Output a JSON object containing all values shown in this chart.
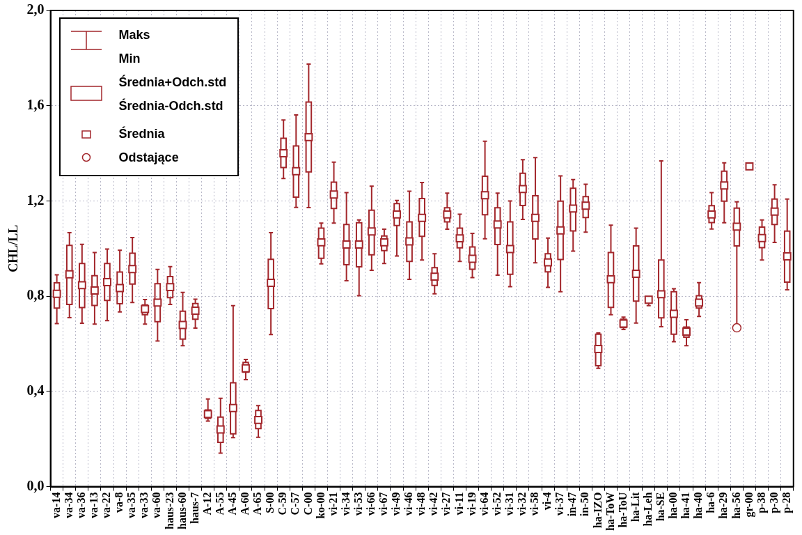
{
  "chart_data": {
    "type": "box",
    "ylabel": "CHL/LL",
    "color": "#a3272c",
    "marker": "square",
    "grid": true,
    "ylim": [
      0,
      2
    ],
    "yticks": [
      {
        "value": 0,
        "label": "0,0"
      },
      {
        "value": 0.4,
        "label": "0,4"
      },
      {
        "value": 0.8,
        "label": "0,8"
      },
      {
        "value": 1.2,
        "label": "1,2"
      },
      {
        "value": 1.6,
        "label": "1,6"
      },
      {
        "value": 2,
        "label": "2,0"
      }
    ],
    "annotations": [
      "Maks",
      "Min",
      "Średnia+Odch.std",
      "Średnia-Odch.std",
      "Średnia",
      "Odstające"
    ],
    "categories": [
      "va-14",
      "va-34",
      "va-36",
      "va-13",
      "va-22",
      "va-8",
      "va-35",
      "va-33",
      "va-60",
      "haus-23",
      "haus-60",
      "haus-7",
      "A-12",
      "A-55",
      "A-45",
      "A-60",
      "A-65",
      "S-00",
      "C-59",
      "C-57",
      "C-00",
      "ko-00",
      "vi-21",
      "vi-34",
      "vi-53",
      "vi-66",
      "vi-67",
      "vi-49",
      "vi-46",
      "vi-48",
      "vi-42",
      "vi-27",
      "vi-11",
      "vi-19",
      "vi-64",
      "vi-52",
      "vi-31",
      "vi-32",
      "vi-58",
      "vi-4",
      "vi-37",
      "in-47",
      "in-50",
      "ha-IZO",
      "ha-ToW",
      "ha-ToU",
      "ha-Lit",
      "ha-Leh",
      "ha-SE",
      "ha-00",
      "ha-41",
      "ha-40",
      "ha-6",
      "ha-29",
      "ha-56",
      "gr-00",
      "p-38",
      "p-30",
      "p-28"
    ],
    "boxes": [
      {
        "low": 0.685,
        "q1": 0.75,
        "q3": 0.856,
        "high": 0.89,
        "mean": 0.81
      },
      {
        "low": 0.71,
        "q1": 0.765,
        "q3": 1.013,
        "high": 1.067,
        "mean": 0.892
      },
      {
        "low": 0.686,
        "q1": 0.752,
        "q3": 0.937,
        "high": 1.018,
        "mean": 0.846
      },
      {
        "low": 0.683,
        "q1": 0.761,
        "q3": 0.886,
        "high": 0.983,
        "mean": 0.824
      },
      {
        "low": 0.697,
        "q1": 0.782,
        "q3": 0.937,
        "high": 0.998,
        "mean": 0.859
      },
      {
        "low": 0.734,
        "q1": 0.768,
        "q3": 0.901,
        "high": 0.993,
        "mean": 0.834
      },
      {
        "low": 0.773,
        "q1": 0.851,
        "q3": 0.98,
        "high": 1.046,
        "mean": 0.914
      },
      {
        "low": 0.683,
        "q1": 0.722,
        "q3": 0.763,
        "high": 0.786,
        "mean": 0.746
      },
      {
        "low": 0.612,
        "q1": 0.693,
        "q3": 0.852,
        "high": 0.912,
        "mean": 0.773
      },
      {
        "low": 0.765,
        "q1": 0.794,
        "q3": 0.882,
        "high": 0.924,
        "mean": 0.838
      },
      {
        "low": 0.592,
        "q1": 0.62,
        "q3": 0.737,
        "high": 0.816,
        "mean": 0.679
      },
      {
        "low": 0.666,
        "q1": 0.703,
        "q3": 0.769,
        "high": 0.787,
        "mean": 0.739
      },
      {
        "low": 0.275,
        "q1": 0.287,
        "q3": 0.322,
        "high": 0.368,
        "mean": 0.305
      },
      {
        "low": 0.141,
        "q1": 0.186,
        "q3": 0.292,
        "high": 0.371,
        "mean": 0.24
      },
      {
        "low": 0.206,
        "q1": 0.222,
        "q3": 0.436,
        "high": 0.76,
        "mean": 0.33
      },
      {
        "low": 0.449,
        "q1": 0.481,
        "q3": 0.522,
        "high": 0.534,
        "mean": 0.497
      },
      {
        "low": 0.207,
        "q1": 0.244,
        "q3": 0.32,
        "high": 0.34,
        "mean": 0.28
      },
      {
        "low": 0.639,
        "q1": 0.748,
        "q3": 0.955,
        "high": 1.067,
        "mean": 0.856
      },
      {
        "low": 1.294,
        "q1": 1.34,
        "q3": 1.463,
        "high": 1.54,
        "mean": 1.4
      },
      {
        "low": 1.173,
        "q1": 1.216,
        "q3": 1.431,
        "high": 1.561,
        "mean": 1.325
      },
      {
        "low": 1.172,
        "q1": 1.322,
        "q3": 1.615,
        "high": 1.775,
        "mean": 1.468
      },
      {
        "low": 0.936,
        "q1": 0.959,
        "q3": 1.086,
        "high": 1.107,
        "mean": 1.026
      },
      {
        "low": 1.107,
        "q1": 1.168,
        "q3": 1.279,
        "high": 1.363,
        "mean": 1.227
      },
      {
        "low": 0.865,
        "q1": 0.932,
        "q3": 1.101,
        "high": 1.235,
        "mean": 1.017
      },
      {
        "low": 0.802,
        "q1": 0.923,
        "q3": 1.108,
        "high": 1.12,
        "mean": 1.017
      },
      {
        "low": 0.909,
        "q1": 0.974,
        "q3": 1.161,
        "high": 1.262,
        "mean": 1.072
      },
      {
        "low": 0.937,
        "q1": 0.991,
        "q3": 1.053,
        "high": 1.081,
        "mean": 1.026
      },
      {
        "low": 0.969,
        "q1": 1.097,
        "q3": 1.189,
        "high": 1.202,
        "mean": 1.143
      },
      {
        "low": 0.871,
        "q1": 0.946,
        "q3": 1.112,
        "high": 1.241,
        "mean": 1.03
      },
      {
        "low": 0.952,
        "q1": 1.051,
        "q3": 1.21,
        "high": 1.277,
        "mean": 1.129
      },
      {
        "low": 0.81,
        "q1": 0.845,
        "q3": 0.92,
        "high": 0.978,
        "mean": 0.882
      },
      {
        "low": 1.081,
        "q1": 1.112,
        "q3": 1.171,
        "high": 1.233,
        "mean": 1.143
      },
      {
        "low": 0.946,
        "q1": 1.003,
        "q3": 1.086,
        "high": 1.144,
        "mean": 1.043
      },
      {
        "low": 0.878,
        "q1": 0.913,
        "q3": 1.007,
        "high": 1.064,
        "mean": 0.957
      },
      {
        "low": 1.041,
        "q1": 1.142,
        "q3": 1.304,
        "high": 1.451,
        "mean": 1.224
      },
      {
        "low": 0.888,
        "q1": 1.017,
        "q3": 1.171,
        "high": 1.233,
        "mean": 1.101
      },
      {
        "low": 0.84,
        "q1": 0.892,
        "q3": 1.112,
        "high": 1.2,
        "mean": 0.998
      },
      {
        "low": 1.122,
        "q1": 1.181,
        "q3": 1.316,
        "high": 1.373,
        "mean": 1.25
      },
      {
        "low": 0.94,
        "q1": 1.04,
        "q3": 1.222,
        "high": 1.382,
        "mean": 1.129
      },
      {
        "low": 0.837,
        "q1": 0.902,
        "q3": 0.978,
        "high": 1.044,
        "mean": 0.942
      },
      {
        "low": 0.819,
        "q1": 0.954,
        "q3": 1.199,
        "high": 1.305,
        "mean": 1.076
      },
      {
        "low": 0.989,
        "q1": 1.074,
        "q3": 1.253,
        "high": 1.29,
        "mean": 1.168
      },
      {
        "low": 1.069,
        "q1": 1.13,
        "q3": 1.218,
        "high": 1.27,
        "mean": 1.18
      },
      {
        "low": 0.497,
        "q1": 0.508,
        "q3": 0.64,
        "high": 0.645,
        "mean": 0.578
      },
      {
        "low": 0.722,
        "q1": 0.753,
        "q3": 0.983,
        "high": 1.098,
        "mean": 0.871
      },
      {
        "low": 0.66,
        "q1": 0.668,
        "q3": 0.703,
        "high": 0.712,
        "mean": 0.685
      },
      {
        "low": 0.687,
        "q1": 0.779,
        "q3": 1.011,
        "high": 1.086,
        "mean": 0.894
      },
      {
        "low": 0.76,
        "q1": 0.775,
        "q3": 0.795,
        "high": 0.795,
        "mean": 0.785
      },
      {
        "low": 0.672,
        "q1": 0.709,
        "q3": 0.952,
        "high": 1.368,
        "mean": 0.808
      },
      {
        "low": 0.609,
        "q1": 0.64,
        "q3": 0.819,
        "high": 0.831,
        "mean": 0.726
      },
      {
        "low": 0.592,
        "q1": 0.628,
        "q3": 0.67,
        "high": 0.701,
        "mean": 0.651
      },
      {
        "low": 0.715,
        "q1": 0.75,
        "q3": 0.802,
        "high": 0.857,
        "mean": 0.773
      },
      {
        "low": 1.082,
        "q1": 1.109,
        "q3": 1.18,
        "high": 1.235,
        "mean": 1.143
      },
      {
        "low": 1.108,
        "q1": 1.199,
        "q3": 1.325,
        "high": 1.36,
        "mean": 1.265
      },
      {
        "low": 0.68,
        "q1": 1.011,
        "q3": 1.17,
        "high": 1.196,
        "mean": 1.092,
        "outliers": [
          0.667
        ]
      },
      {
        "low": 1.345,
        "q1": 1.345,
        "q3": 1.345,
        "high": 1.345,
        "mean": 1.345
      },
      {
        "low": 0.952,
        "q1": 1.004,
        "q3": 1.09,
        "high": 1.12,
        "mean": 1.044
      },
      {
        "low": 1.026,
        "q1": 1.101,
        "q3": 1.208,
        "high": 1.268,
        "mean": 1.155
      },
      {
        "low": 0.827,
        "q1": 0.859,
        "q3": 1.073,
        "high": 1.208,
        "mean": 0.967
      }
    ]
  }
}
